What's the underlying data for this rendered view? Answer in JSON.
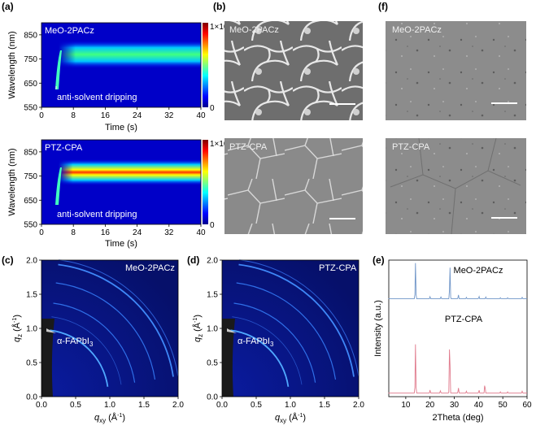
{
  "panel_labels": {
    "a": "(a)",
    "b": "(b)",
    "c": "(c)",
    "d": "(d)",
    "e": "(e)",
    "f": "(f)"
  },
  "insitu_pl": {
    "ylabel": "Wavelength (nm)",
    "xlabel": "Time (s)",
    "xticks": [
      "0",
      "8",
      "16",
      "24",
      "32",
      "40"
    ],
    "yticks": [
      "550",
      "650",
      "750",
      "850"
    ],
    "colorbar_max": "1×10",
    "colorbar_exp": "4",
    "colorbar_min": "0",
    "annotation": "anti-solvent dripping",
    "samples": [
      "MeO-2PACz",
      "PTZ-CPA"
    ]
  },
  "sem": {
    "labels_b": [
      "MeO-2PACz",
      "PTZ-CPA"
    ],
    "labels_f": [
      "MeO-2PACz",
      "PTZ-CPA"
    ]
  },
  "giwaxs": {
    "ylabel_q": "q",
    "ylabel_sub": "z",
    "ylabel_unit": " (Å",
    "ylabel_exp": "-1",
    "ylabel_close": ")",
    "xlabel_q": "q",
    "xlabel_sub": "xy",
    "xlabel_unit": " (Å",
    "xlabel_exp": "-1",
    "xlabel_close": ")",
    "ticks": [
      "0.0",
      "0.5",
      "1.0",
      "1.5",
      "2.0"
    ],
    "phase_label": "α-FAPbI",
    "phase_sub": "3",
    "samples": [
      "MeO-2PACz",
      "PTZ-CPA"
    ]
  },
  "chart_data": [
    {
      "type": "line",
      "panel": "(e)",
      "xlabel": "2Theta (deg)",
      "ylabel": "Intensity (a.u.)",
      "xlim": [
        3,
        60
      ],
      "xticks": [
        10,
        20,
        30,
        40,
        50,
        60
      ],
      "series": [
        {
          "name": "MeO-2PACz",
          "color": "#6f95c8",
          "peaks": [
            [
              14.0,
              1.0
            ],
            [
              20.0,
              0.06
            ],
            [
              24.5,
              0.05
            ],
            [
              28.2,
              0.95
            ],
            [
              31.7,
              0.12
            ],
            [
              35.0,
              0.04
            ],
            [
              40.2,
              0.07
            ],
            [
              43.0,
              0.05
            ],
            [
              49.0,
              0.03
            ],
            [
              52.0,
              0.03
            ],
            [
              58.0,
              0.04
            ]
          ]
        },
        {
          "name": "PTZ-CPA",
          "color": "#e07a8c",
          "peaks": [
            [
              14.0,
              0.79
            ],
            [
              20.0,
              0.05
            ],
            [
              24.3,
              0.04
            ],
            [
              28.1,
              1.0
            ],
            [
              31.7,
              0.09
            ],
            [
              35.0,
              0.03
            ],
            [
              40.2,
              0.05
            ],
            [
              42.6,
              0.17
            ],
            [
              49.0,
              0.02
            ],
            [
              52.0,
              0.02
            ],
            [
              58.0,
              0.03
            ]
          ]
        }
      ]
    }
  ]
}
